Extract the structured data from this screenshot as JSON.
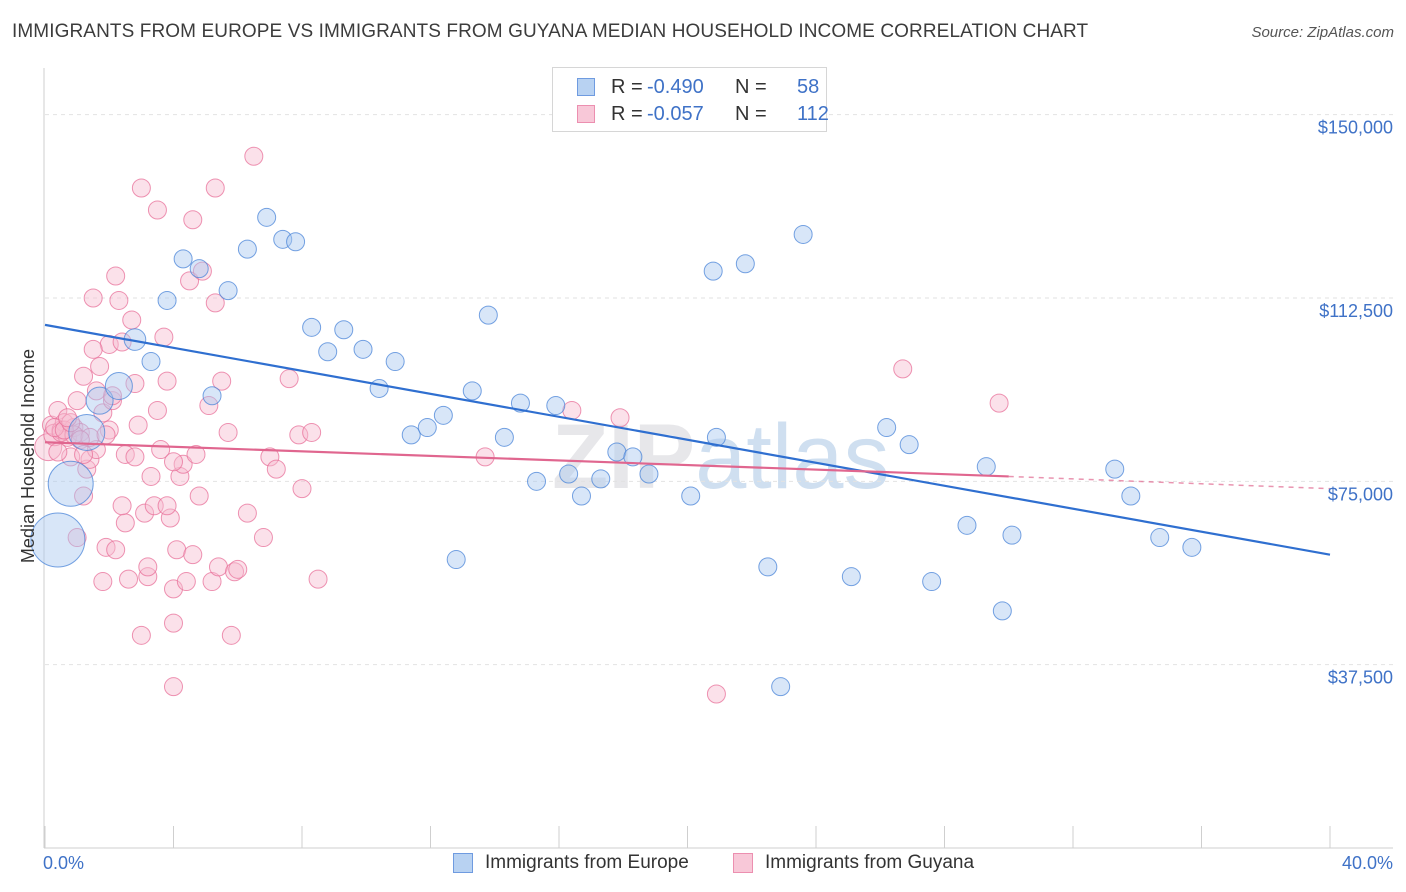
{
  "title": "IMMIGRANTS FROM EUROPE VS IMMIGRANTS FROM GUYANA MEDIAN HOUSEHOLD INCOME CORRELATION CHART",
  "source": "Source: ZipAtlas.com",
  "watermark": {
    "zip": "ZIP",
    "atlas": "atlas"
  },
  "legend": {
    "europe": {
      "r_label": "R =",
      "r_value": "-0.490",
      "n_label": "N =",
      "n_value": "58"
    },
    "guyana": {
      "r_label": "R =",
      "r_value": "-0.057",
      "n_label": "N =",
      "n_value": "112"
    }
  },
  "bottom_legend": {
    "europe": "Immigrants from Europe",
    "guyana": "Immigrants from Guyana"
  },
  "chart_data": {
    "type": "scatter",
    "title": "IMMIGRANTS FROM EUROPE VS IMMIGRANTS FROM GUYANA MEDIAN HOUSEHOLD INCOME CORRELATION CHART",
    "xlabel": "",
    "ylabel": "Median Household Income",
    "xlim": [
      0,
      40
    ],
    "ylim": [
      0,
      157500
    ],
    "x_tick_labels": [
      "0.0%",
      "40.0%"
    ],
    "y_ticks": [
      37500,
      75000,
      112500,
      150000
    ],
    "y_tick_labels": [
      "$37,500",
      "$75,000",
      "$112,500",
      "$150,000"
    ],
    "colors": {
      "europe": "#4a84d8",
      "europe_fill": "#a9c8ef",
      "guyana": "#e8709a",
      "guyana_fill": "#f6bdd0"
    },
    "series": [
      {
        "name": "Immigrants from Europe",
        "key": "europe",
        "trend": {
          "x": [
            0,
            40
          ],
          "y": [
            107000,
            60000
          ]
        },
        "points": [
          [
            0.4,
            63000,
            3
          ],
          [
            0.8,
            74500,
            2.5
          ],
          [
            1.3,
            85000,
            2
          ],
          [
            1.7,
            91500,
            1.5
          ],
          [
            2.3,
            94500,
            1.5
          ],
          [
            2.8,
            104000,
            1.2
          ],
          [
            3.3,
            99500,
            1
          ],
          [
            3.8,
            112000,
            1
          ],
          [
            4.3,
            120500,
            1
          ],
          [
            4.8,
            118500,
            1
          ],
          [
            5.2,
            92500,
            1
          ],
          [
            5.7,
            114000,
            1
          ],
          [
            6.3,
            122500,
            1
          ],
          [
            6.9,
            129000,
            1
          ],
          [
            7.4,
            124500,
            1
          ],
          [
            7.8,
            124000,
            1
          ],
          [
            8.3,
            106500,
            1
          ],
          [
            8.8,
            101500,
            1
          ],
          [
            9.3,
            106000,
            1
          ],
          [
            9.9,
            102000,
            1
          ],
          [
            10.4,
            94000,
            1
          ],
          [
            10.9,
            99500,
            1
          ],
          [
            11.4,
            84500,
            1
          ],
          [
            11.9,
            86000,
            1
          ],
          [
            12.4,
            88500,
            1
          ],
          [
            12.8,
            59000,
            1
          ],
          [
            13.3,
            93500,
            1
          ],
          [
            13.8,
            109000,
            1
          ],
          [
            14.3,
            84000,
            1
          ],
          [
            14.8,
            91000,
            1
          ],
          [
            15.3,
            75000,
            1
          ],
          [
            15.9,
            90500,
            1
          ],
          [
            16.3,
            76500,
            1
          ],
          [
            16.7,
            72000,
            1
          ],
          [
            17.3,
            75500,
            1
          ],
          [
            17.8,
            81000,
            1
          ],
          [
            18.3,
            80000,
            1
          ],
          [
            18.8,
            76500,
            1
          ],
          [
            20.1,
            72000,
            1
          ],
          [
            20.9,
            84000,
            1
          ],
          [
            20.8,
            118000,
            1
          ],
          [
            21.8,
            119500,
            1
          ],
          [
            22.5,
            57500,
            1
          ],
          [
            22.9,
            33000,
            1
          ],
          [
            23.6,
            125500,
            1
          ],
          [
            25.1,
            55500,
            1
          ],
          [
            26.2,
            86000,
            1
          ],
          [
            26.9,
            82500,
            1
          ],
          [
            27.6,
            54500,
            1
          ],
          [
            28.7,
            66000,
            1
          ],
          [
            29.3,
            78000,
            1
          ],
          [
            29.8,
            48500,
            1
          ],
          [
            30.1,
            64000,
            1
          ],
          [
            33.3,
            77500,
            1
          ],
          [
            33.8,
            72000,
            1
          ],
          [
            34.7,
            63500,
            1
          ],
          [
            35.7,
            61500,
            1
          ]
        ]
      },
      {
        "name": "Immigrants from Guyana",
        "key": "guyana",
        "trend": {
          "x": [
            0,
            30
          ],
          "y": [
            83000,
            76000
          ]
        },
        "trend_dashed": {
          "x": [
            30,
            40
          ],
          "y": [
            76000,
            73500
          ]
        },
        "points": [
          [
            0.1,
            82000,
            1.5
          ],
          [
            0.2,
            86500,
            1
          ],
          [
            0.3,
            84500,
            1.2
          ],
          [
            0.4,
            89500,
            1
          ],
          [
            0.5,
            85500,
            1
          ],
          [
            0.6,
            87000,
            1
          ],
          [
            0.7,
            84000,
            1
          ],
          [
            0.8,
            80000,
            1
          ],
          [
            0.9,
            86000,
            1
          ],
          [
            1.0,
            91500,
            1
          ],
          [
            1.1,
            85000,
            1
          ],
          [
            1.0,
            63500,
            1
          ],
          [
            1.2,
            72000,
            1
          ],
          [
            1.3,
            77500,
            1
          ],
          [
            1.2,
            96500,
            1
          ],
          [
            1.4,
            79500,
            1
          ],
          [
            1.5,
            112500,
            1
          ],
          [
            1.6,
            81500,
            1
          ],
          [
            1.7,
            98500,
            1
          ],
          [
            1.8,
            89000,
            1
          ],
          [
            1.8,
            54500,
            1
          ],
          [
            1.9,
            61500,
            1
          ],
          [
            2.0,
            103000,
            1
          ],
          [
            2.0,
            85500,
            1
          ],
          [
            2.1,
            91500,
            1
          ],
          [
            2.2,
            117000,
            1
          ],
          [
            2.3,
            112000,
            1
          ],
          [
            2.4,
            103500,
            1
          ],
          [
            2.5,
            80500,
            1
          ],
          [
            2.5,
            66500,
            1
          ],
          [
            2.6,
            55000,
            1
          ],
          [
            2.7,
            108000,
            1
          ],
          [
            2.8,
            95000,
            1
          ],
          [
            2.9,
            86500,
            1
          ],
          [
            3.0,
            43500,
            1
          ],
          [
            3.1,
            68500,
            1
          ],
          [
            3.2,
            55500,
            1
          ],
          [
            3.3,
            76000,
            1
          ],
          [
            3.4,
            70000,
            1
          ],
          [
            3.5,
            89500,
            1
          ],
          [
            3.5,
            130500,
            1
          ],
          [
            3.6,
            81500,
            1
          ],
          [
            3.7,
            104500,
            1
          ],
          [
            3.8,
            95500,
            1
          ],
          [
            3.9,
            67500,
            1
          ],
          [
            4.0,
            53000,
            1
          ],
          [
            4.0,
            46000,
            1
          ],
          [
            4.0,
            33000,
            1
          ],
          [
            4.1,
            61000,
            1
          ],
          [
            4.2,
            76000,
            1
          ],
          [
            4.3,
            78500,
            1
          ],
          [
            4.4,
            54500,
            1
          ],
          [
            4.5,
            116000,
            1
          ],
          [
            4.6,
            128500,
            1
          ],
          [
            4.7,
            80500,
            1
          ],
          [
            4.8,
            72000,
            1
          ],
          [
            4.9,
            118000,
            1
          ],
          [
            5.1,
            90500,
            1
          ],
          [
            5.2,
            54500,
            1
          ],
          [
            5.3,
            111500,
            1
          ],
          [
            5.4,
            57500,
            1
          ],
          [
            5.5,
            95500,
            1
          ],
          [
            5.7,
            85000,
            1
          ],
          [
            5.8,
            43500,
            1
          ],
          [
            5.9,
            56500,
            1
          ],
          [
            6.3,
            68500,
            1
          ],
          [
            6.5,
            141500,
            1
          ],
          [
            6.8,
            63500,
            1
          ],
          [
            7.0,
            80000,
            1
          ],
          [
            7.2,
            77500,
            1
          ],
          [
            7.6,
            96000,
            1
          ],
          [
            7.9,
            84500,
            1
          ],
          [
            8.0,
            73500,
            1
          ],
          [
            8.3,
            85000,
            1
          ],
          [
            8.5,
            55000,
            1
          ],
          [
            13.7,
            80000,
            1
          ],
          [
            16.4,
            89500,
            1
          ],
          [
            17.9,
            88000,
            1
          ],
          [
            20.9,
            31500,
            1
          ],
          [
            26.7,
            98000,
            1
          ],
          [
            29.7,
            91000,
            1
          ],
          [
            3.0,
            135000,
            1
          ],
          [
            5.3,
            135000,
            1
          ],
          [
            0.5,
            85000,
            1
          ],
          [
            0.9,
            84500,
            1
          ],
          [
            1.4,
            84000,
            1
          ],
          [
            0.3,
            86000,
            1
          ],
          [
            0.6,
            85500,
            1
          ],
          [
            1.1,
            83500,
            1
          ],
          [
            2.1,
            92500,
            1
          ],
          [
            2.8,
            80000,
            1
          ],
          [
            3.2,
            57500,
            1
          ],
          [
            4.0,
            79000,
            1
          ],
          [
            1.5,
            102000,
            1
          ],
          [
            0.8,
            87000,
            1
          ],
          [
            1.9,
            84500,
            1
          ],
          [
            2.4,
            70000,
            1
          ],
          [
            1.2,
            80500,
            1
          ],
          [
            0.4,
            81000,
            1
          ],
          [
            3.8,
            70000,
            1
          ],
          [
            6.0,
            57000,
            1
          ],
          [
            2.2,
            61000,
            1
          ],
          [
            4.6,
            60000,
            1
          ],
          [
            1.6,
            93500,
            1
          ],
          [
            0.7,
            88000,
            1
          ]
        ]
      }
    ]
  }
}
